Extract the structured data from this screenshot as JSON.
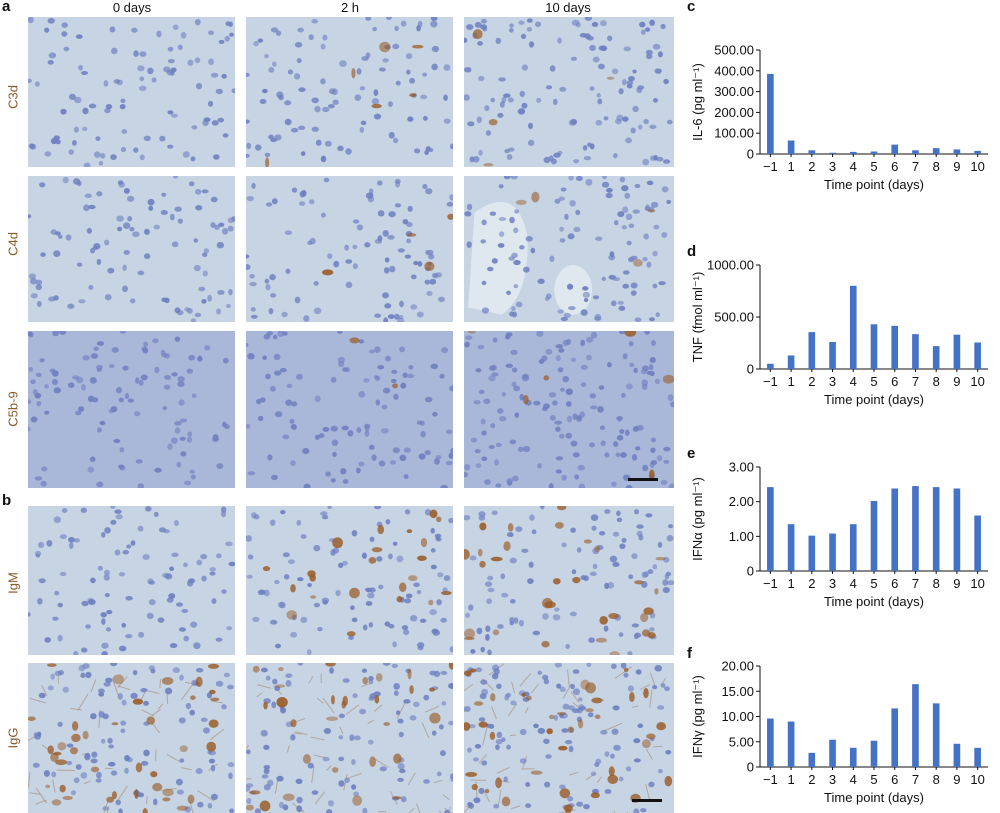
{
  "panels": {
    "a": "a",
    "b": "b",
    "c": "c",
    "d": "d",
    "e": "e",
    "f": "f"
  },
  "micrographs": {
    "columns": [
      "0 days",
      "2 h",
      "10 days"
    ],
    "rows_a": [
      "C3d",
      "C4d",
      "C5b-9"
    ],
    "rows_b": [
      "IgM",
      "IgG"
    ],
    "label_color": "#8a5a2b",
    "tissue_color": "#c6d4e4",
    "nucleus_color": "#6f7fc0",
    "stain_color": "#9a5a24"
  },
  "chart_data": [
    {
      "id": "c",
      "type": "bar",
      "categories": [
        "−1",
        "1",
        "2",
        "3",
        "4",
        "5",
        "6",
        "7",
        "8",
        "9",
        "10"
      ],
      "values": [
        385,
        65,
        18,
        6,
        10,
        12,
        45,
        18,
        28,
        22,
        15
      ],
      "ylabel": "IL-6 (pg ml⁻¹)",
      "xlabel": "Time point (days)",
      "yticks": [
        "0",
        "100.00",
        "200.00",
        "300.00",
        "400.00",
        "500.00"
      ],
      "ylim": [
        0,
        500
      ],
      "color": "#4472c4"
    },
    {
      "id": "d",
      "type": "bar",
      "categories": [
        "−1",
        "1",
        "2",
        "3",
        "4",
        "5",
        "6",
        "7",
        "8",
        "9",
        "10"
      ],
      "values": [
        50,
        130,
        355,
        260,
        800,
        430,
        415,
        335,
        220,
        330,
        255
      ],
      "ylabel": "TNF (fmol ml⁻¹)",
      "xlabel": "Time point (days)",
      "yticks": [
        "0",
        "500.00",
        "1000.00"
      ],
      "ylim": [
        0,
        1000
      ],
      "color": "#4472c4"
    },
    {
      "id": "e",
      "type": "bar",
      "categories": [
        "−1",
        "1",
        "2",
        "3",
        "4",
        "5",
        "6",
        "7",
        "8",
        "9",
        "10"
      ],
      "values": [
        2.42,
        1.35,
        1.02,
        1.08,
        1.35,
        2.02,
        2.38,
        2.45,
        2.42,
        2.38,
        1.6
      ],
      "ylabel": "IFNα (pg ml⁻¹)",
      "xlabel": "Time point (days)",
      "yticks": [
        "0",
        "1.00",
        "2.00",
        "3.00"
      ],
      "ylim": [
        0,
        3
      ],
      "color": "#4472c4"
    },
    {
      "id": "f",
      "type": "bar",
      "categories": [
        "−1",
        "1",
        "2",
        "3",
        "4",
        "5",
        "6",
        "7",
        "8",
        "9",
        "10"
      ],
      "values": [
        9.6,
        9.0,
        2.8,
        5.4,
        3.8,
        5.2,
        11.6,
        16.4,
        12.6,
        4.6,
        3.8
      ],
      "ylabel": "IFNγ (pg ml⁻¹)",
      "xlabel": "Time point (days)",
      "yticks": [
        "0",
        "5.00",
        "10.00",
        "15.00",
        "20.00"
      ],
      "ylim": [
        0,
        20
      ],
      "color": "#4472c4"
    }
  ]
}
